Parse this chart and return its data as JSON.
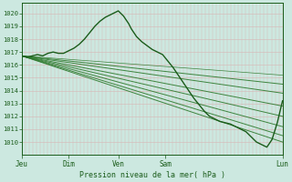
{
  "xlabel": "Pression niveau de la mer( hPa )",
  "ylim": [
    1009.0,
    1020.8
  ],
  "yticks": [
    1010,
    1011,
    1012,
    1013,
    1014,
    1015,
    1016,
    1017,
    1018,
    1019,
    1020
  ],
  "xtick_labels": [
    "Jeu",
    "Dim",
    "Ven",
    "Sam",
    "Lun"
  ],
  "xtick_positions": [
    0.0,
    0.18,
    0.37,
    0.55,
    1.0
  ],
  "bg_color": "#cce8e0",
  "grid_h_color": "#d8b4b4",
  "grid_v_color": "#d8b4b4",
  "line_color_dark": "#1a5c1a",
  "line_color_mid": "#2d7a2d",
  "line_color_light": "#4aaa4a",
  "forecast_lines": [
    {
      "x": [
        0.0,
        1.0
      ],
      "y": [
        1016.7,
        1013.8
      ],
      "lw": 0.7
    },
    {
      "x": [
        0.0,
        1.0
      ],
      "y": [
        1016.7,
        1012.8
      ],
      "lw": 0.7
    },
    {
      "x": [
        0.0,
        1.0
      ],
      "y": [
        1016.7,
        1012.0
      ],
      "lw": 0.7
    },
    {
      "x": [
        0.0,
        1.0
      ],
      "y": [
        1016.7,
        1011.2
      ],
      "lw": 0.7
    },
    {
      "x": [
        0.0,
        1.0
      ],
      "y": [
        1016.7,
        1010.5
      ],
      "lw": 0.7
    },
    {
      "x": [
        0.0,
        1.0
      ],
      "y": [
        1016.7,
        1010.0
      ],
      "lw": 0.7
    },
    {
      "x": [
        0.0,
        1.0
      ],
      "y": [
        1016.7,
        1014.5
      ],
      "lw": 0.7
    },
    {
      "x": [
        0.0,
        1.0
      ],
      "y": [
        1016.7,
        1015.2
      ],
      "lw": 0.5
    }
  ],
  "main_line_x": [
    0.0,
    0.02,
    0.04,
    0.06,
    0.08,
    0.1,
    0.12,
    0.14,
    0.16,
    0.18,
    0.2,
    0.22,
    0.24,
    0.26,
    0.28,
    0.3,
    0.32,
    0.34,
    0.36,
    0.37,
    0.38,
    0.39,
    0.4,
    0.41,
    0.42,
    0.43,
    0.44,
    0.46,
    0.48,
    0.5,
    0.52,
    0.54,
    0.56,
    0.58,
    0.6,
    0.62,
    0.64,
    0.66,
    0.68,
    0.7,
    0.72,
    0.74,
    0.76,
    0.78,
    0.8,
    0.82,
    0.84,
    0.86,
    0.88,
    0.9,
    0.92,
    0.94,
    0.96,
    0.98,
    1.0
  ],
  "main_line_y": [
    1016.7,
    1016.6,
    1016.7,
    1016.8,
    1016.7,
    1016.9,
    1017.0,
    1016.9,
    1016.9,
    1017.1,
    1017.3,
    1017.6,
    1018.0,
    1018.5,
    1019.0,
    1019.4,
    1019.7,
    1019.9,
    1020.1,
    1020.2,
    1020.0,
    1019.8,
    1019.5,
    1019.2,
    1018.8,
    1018.5,
    1018.2,
    1017.8,
    1017.5,
    1017.2,
    1017.0,
    1016.8,
    1016.3,
    1015.8,
    1015.2,
    1014.6,
    1014.0,
    1013.4,
    1012.9,
    1012.4,
    1012.0,
    1011.8,
    1011.6,
    1011.5,
    1011.4,
    1011.2,
    1011.0,
    1010.8,
    1010.4,
    1010.0,
    1009.8,
    1009.6,
    1010.2,
    1011.5,
    1013.2
  ]
}
